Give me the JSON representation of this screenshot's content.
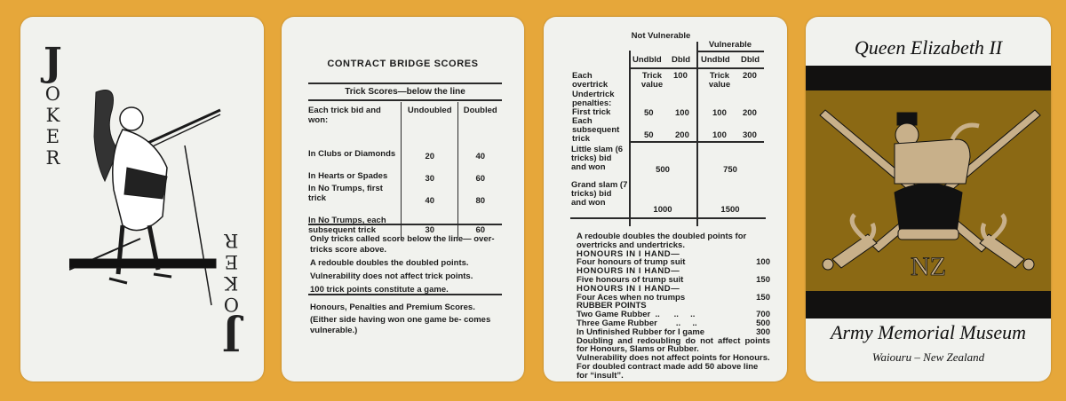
{
  "colors": {
    "background": "#e6a73a",
    "card": "#f1f2ee",
    "emblem_gold": "#8b6914",
    "emblem_tan": "#c8b08a",
    "band": "#121110"
  },
  "joker_card": {
    "big_letter": "J",
    "rest": [
      "O",
      "K",
      "E",
      "R"
    ]
  },
  "bridge_card_1": {
    "title": "CONTRACT BRIDGE SCORES",
    "subtitle": "Trick Scores—below the line",
    "headers": {
      "label": "Each trick bid and won:",
      "undoubled": "Undoubled",
      "doubled": "Doubled"
    },
    "rows": [
      {
        "label": "In Clubs or Diamonds",
        "undoubled": "20",
        "doubled": "40"
      },
      {
        "label": "In Hearts or Spades",
        "undoubled": "30",
        "doubled": "60"
      },
      {
        "label": "In No Trumps, first trick",
        "undoubled": "40",
        "doubled": "80"
      },
      {
        "label": "In No Trumps, each subsequent trick",
        "undoubled": "30",
        "doubled": "60"
      }
    ],
    "notes": [
      "Only tricks called score below the line— over-tricks score above.",
      "A redouble doubles the doubled points.",
      "Vulnerability does not affect trick points.",
      "100 trick points constitute a game."
    ],
    "honours_title": "Honours, Penalties and Premium Scores.",
    "honours_note": "(Either side having won one game be- comes vulnerable.)"
  },
  "bridge_card_2": {
    "not_vulnerable": "Not Vulnerable",
    "vulnerable": "Vulnerable",
    "undbld": "Undbld",
    "dbld": "Dbld",
    "each_overtrick": "Each overtrick",
    "trick_value": "Trick value",
    "overtrick_nv_dbld": "100",
    "overtrick_v_dbld": "200",
    "undertrick_penalties": "Undertrick penalties:",
    "first_trick": "First trick",
    "first_trick_values": [
      "50",
      "100",
      "100",
      "200"
    ],
    "each_subsequent": "Each subsequent trick",
    "each_subsequent_values": [
      "50",
      "200",
      "100",
      "300"
    ],
    "little_slam": "Little slam (6 tricks) bid and won",
    "little_slam_values": [
      "500",
      "750"
    ],
    "grand_slam": "Grand slam (7 tricks) bid and won",
    "grand_slam_values": [
      "1000",
      "1500"
    ],
    "redouble_note": "A redouble doubles the doubled points for overtricks and undertricks.",
    "honours": [
      {
        "heading": "HONOURS IN I HAND—",
        "label": "Four honours of trump suit",
        "points": "100"
      },
      {
        "heading": "HONOURS IN I HAND—",
        "label": "Five honours of trump suit",
        "points": "150"
      },
      {
        "heading": "HONOURS IN I HAND—",
        "label": "Four Aces when no trumps",
        "points": "150"
      }
    ],
    "rubber_heading": "RUBBER POINTS",
    "rubber": [
      {
        "label": "Two Game Rubber  ..      ..     ..",
        "points": "700"
      },
      {
        "label": "Three Game Rubber        ..     ..",
        "points": "500"
      },
      {
        "label": "In Unfinished Rubber for I game",
        "points": "300"
      }
    ],
    "closing": [
      "Doubling and redoubling do not affect points for Honours, Slams or Rubber.",
      "Vulnerability does not affect points for Honours.",
      "For doubled contract made add 50 above line for “insult”."
    ]
  },
  "museum_card": {
    "top": "Queen Elizabeth II",
    "emblem_text": "NZ",
    "name": "Army Memorial Museum",
    "location": "Waiouru – New Zealand"
  }
}
